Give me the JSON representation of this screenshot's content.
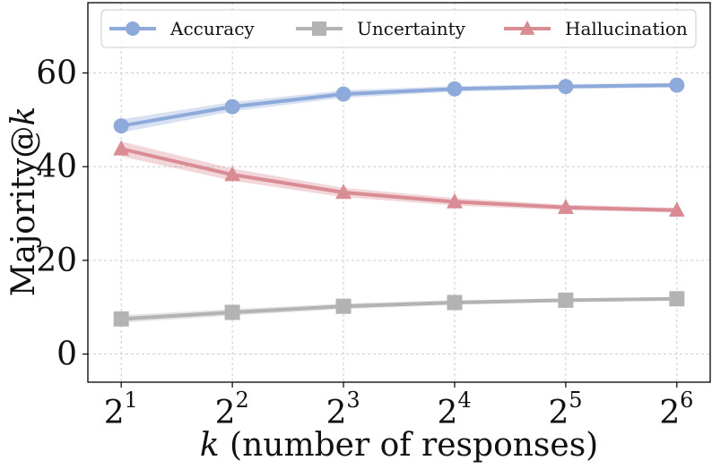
{
  "chart_data": {
    "type": "line",
    "x": [
      2,
      4,
      8,
      16,
      32,
      64
    ],
    "x_tick_labels": [
      {
        "base": "2",
        "exp": "1"
      },
      {
        "base": "2",
        "exp": "2"
      },
      {
        "base": "2",
        "exp": "3"
      },
      {
        "base": "2",
        "exp": "4"
      },
      {
        "base": "2",
        "exp": "5"
      },
      {
        "base": "2",
        "exp": "6"
      }
    ],
    "x_scale": "log2",
    "xlabel_var": "k",
    "xlabel_rest": " (number of responses)",
    "ylabel_text": "Majority@",
    "ylabel_var": "k",
    "ylim": [
      -6,
      75
    ],
    "yticks": [
      0,
      20,
      40,
      60
    ],
    "grid": true,
    "legend_position": "top",
    "series": [
      {
        "name": "Accuracy",
        "color": "#8eaadb",
        "marker": "circle",
        "values": [
          48.7,
          52.8,
          55.5,
          56.6,
          57.1,
          57.4
        ],
        "band": [
          1.4,
          1.0,
          0.8,
          0.6,
          0.5,
          0.5
        ]
      },
      {
        "name": "Uncertainty",
        "color": "#b3b3b3",
        "marker": "square",
        "values": [
          7.5,
          8.9,
          10.2,
          11.0,
          11.5,
          11.8
        ],
        "band": [
          0.8,
          0.7,
          0.6,
          0.5,
          0.4,
          0.4
        ]
      },
      {
        "name": "Hallucination",
        "color": "#d98c94",
        "marker": "triangle",
        "values": [
          43.8,
          38.3,
          34.5,
          32.5,
          31.3,
          30.7
        ],
        "band": [
          1.6,
          1.3,
          1.0,
          0.8,
          0.6,
          0.5
        ]
      }
    ]
  }
}
